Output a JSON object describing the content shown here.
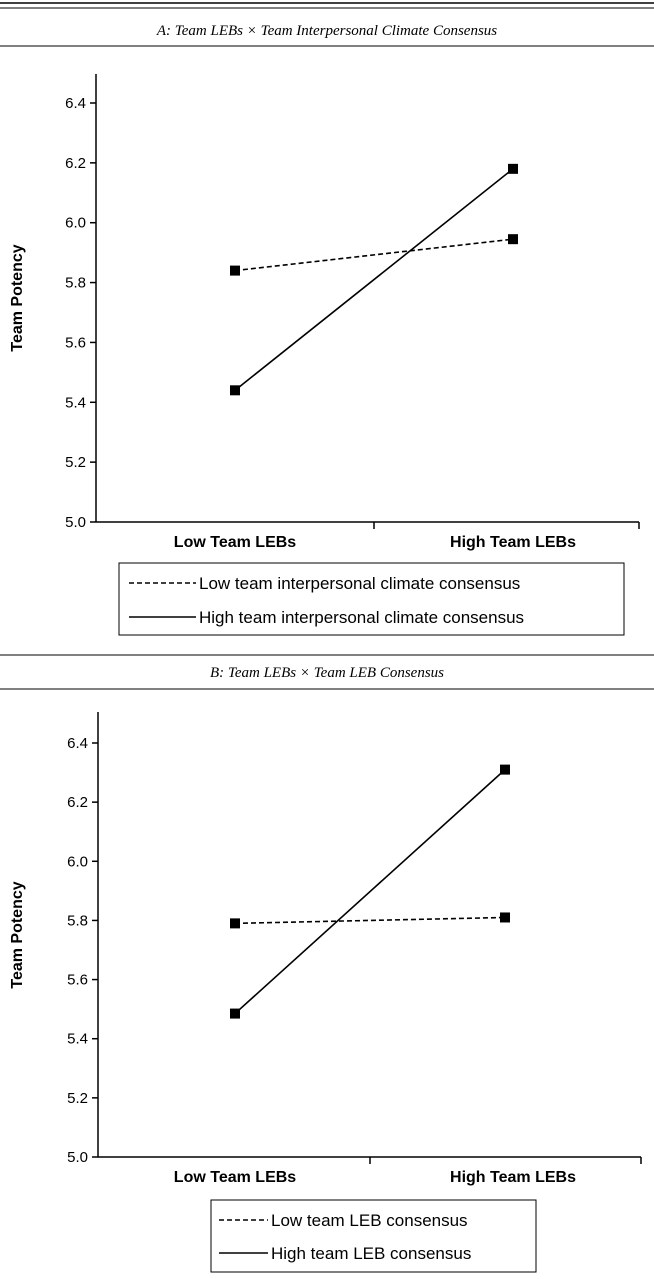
{
  "chart_data": [
    {
      "type": "line",
      "title": "A: Team LEBs × Team Interpersonal Climate Consensus",
      "xlabel": "",
      "ylabel": "Team Potency",
      "categories": [
        "Low Team LEBs",
        "High Team LEBs"
      ],
      "ylim": [
        5.0,
        6.4
      ],
      "yticks": [
        "5.0",
        "5.2",
        "5.4",
        "5.6",
        "5.8",
        "6.0",
        "6.2",
        "6.4"
      ],
      "grid": false,
      "legend_position": "bottom",
      "series": [
        {
          "name": "Low team interpersonal climate consensus",
          "style": "dashed",
          "values": [
            5.84,
            5.945
          ]
        },
        {
          "name": "High team interpersonal climate consensus",
          "style": "solid",
          "values": [
            5.44,
            6.18
          ]
        }
      ]
    },
    {
      "type": "line",
      "title": "B: Team LEBs × Team LEB Consensus",
      "xlabel": "",
      "ylabel": "Team Potency",
      "categories": [
        "Low Team LEBs",
        "High Team LEBs"
      ],
      "ylim": [
        5.0,
        6.4
      ],
      "yticks": [
        "5.0",
        "5.2",
        "5.4",
        "5.6",
        "5.8",
        "6.0",
        "6.2",
        "6.4"
      ],
      "grid": false,
      "legend_position": "bottom",
      "series": [
        {
          "name": "Low team LEB consensus",
          "style": "dashed",
          "values": [
            5.79,
            5.81
          ]
        },
        {
          "name": "High team LEB consensus",
          "style": "solid",
          "values": [
            5.485,
            6.31
          ]
        }
      ]
    }
  ]
}
